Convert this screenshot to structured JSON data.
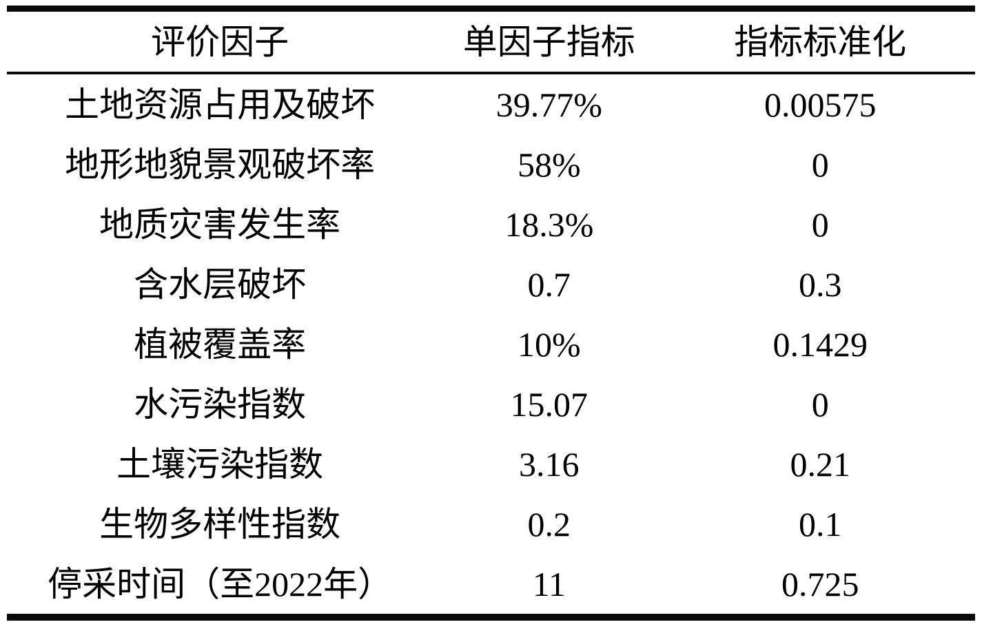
{
  "page": {
    "background_color": "#ffffff",
    "text_color": "#000000",
    "rule_color": "#0a0a0a"
  },
  "table": {
    "columns": [
      "评价因子",
      "单因子指标",
      "指标标准化"
    ],
    "rows": [
      {
        "factor": "土地资源占用及破坏",
        "indicator": "39.77%",
        "normalized": "0.00575"
      },
      {
        "factor": "地形地貌景观破坏率",
        "indicator": "58%",
        "normalized": "0"
      },
      {
        "factor": "地质灾害发生率",
        "indicator": "18.3%",
        "normalized": "0"
      },
      {
        "factor": "含水层破坏",
        "indicator": "0.7",
        "normalized": "0.3"
      },
      {
        "factor": "植被覆盖率",
        "indicator": "10%",
        "normalized": "0.1429"
      },
      {
        "factor": "水污染指数",
        "indicator": "15.07",
        "normalized": "0"
      },
      {
        "factor": "土壤污染指数",
        "indicator": "3.16",
        "normalized": "0.21"
      },
      {
        "factor": "生物多样性指数",
        "indicator": "0.2",
        "normalized": "0.1"
      },
      {
        "factor": "停采时间（至2022年）",
        "indicator": "11",
        "normalized": "0.725"
      }
    ]
  }
}
